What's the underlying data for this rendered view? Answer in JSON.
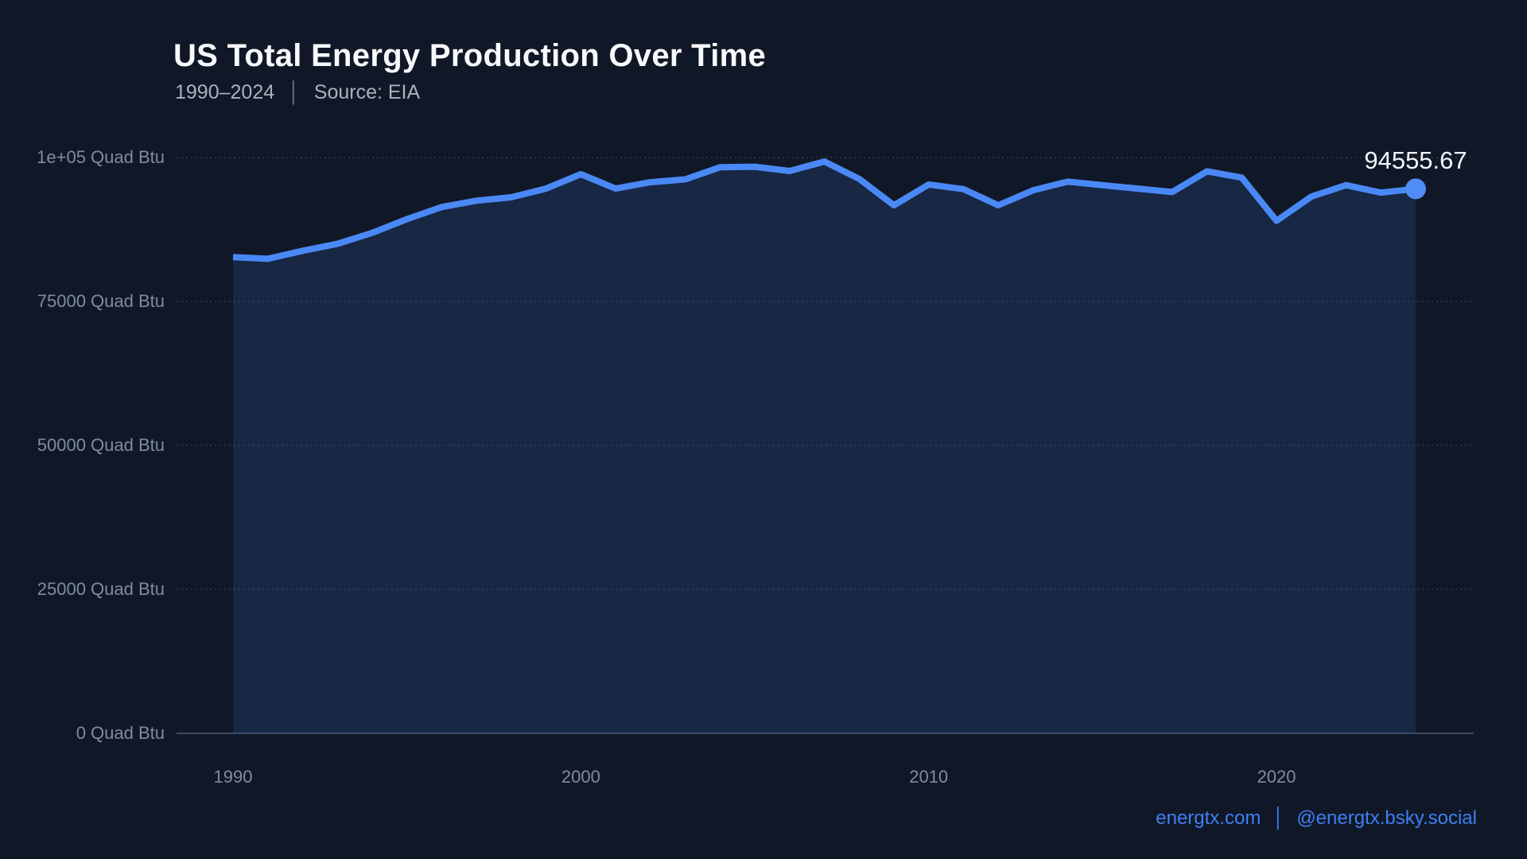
{
  "page": {
    "background_color": "#101827"
  },
  "header": {
    "title": "US Total Energy Production Over Time",
    "subtitle_range": "1990–2024",
    "subtitle_separator": "│",
    "subtitle_source": "Source: EIA"
  },
  "annotation": {
    "last_value_label": "94555.67"
  },
  "footer": {
    "website": "energtx.com",
    "separator": "│",
    "handle": "@energtx.bsky.social"
  },
  "colors": {
    "line": "#4a88f5",
    "marker": "#4f8cf6",
    "area_fill": "rgba(74,136,245,0.14)",
    "gridline": "rgba(160,176,206,0.17)",
    "baseline": "rgba(160,176,206,0.32)",
    "accent_text": "#3f7ef2"
  },
  "chart_data": {
    "type": "area",
    "title": "US Total Energy Production Over Time",
    "subtitle": "1990–2024 | Source: EIA",
    "xlabel": "",
    "ylabel": "Quad Btu",
    "xlim": [
      1990,
      2024
    ],
    "ylim": [
      0,
      100000
    ],
    "grid": "horizontal-dashed",
    "legend_position": "none",
    "x": [
      1990,
      1991,
      1992,
      1993,
      1994,
      1995,
      1996,
      1997,
      1998,
      1999,
      2000,
      2001,
      2002,
      2003,
      2004,
      2005,
      2006,
      2007,
      2008,
      2009,
      2010,
      2011,
      2012,
      2013,
      2014,
      2015,
      2016,
      2017,
      2018,
      2019,
      2020,
      2021,
      2022,
      2023,
      2024
    ],
    "series": [
      {
        "name": "US Total Energy Production",
        "values": [
          82700,
          82400,
          83800,
          85000,
          86900,
          89300,
          91400,
          92500,
          93100,
          94600,
          97100,
          94600,
          95700,
          96200,
          98300,
          98400,
          97650,
          99300,
          96300,
          91700,
          95300,
          94500,
          91700,
          94300,
          95800,
          95200,
          94600,
          94000,
          97600,
          96500,
          89000,
          93200,
          95200,
          93900,
          94555.67
        ]
      }
    ],
    "end_point_label": "94555.67",
    "y_ticks": [
      {
        "value": 0,
        "label": "0 Quad Btu"
      },
      {
        "value": 25000,
        "label": "25000 Quad Btu"
      },
      {
        "value": 50000,
        "label": "50000 Quad Btu"
      },
      {
        "value": 75000,
        "label": "75000 Quad Btu"
      },
      {
        "value": 100000,
        "label": "1e+05 Quad Btu"
      }
    ],
    "x_ticks": [
      {
        "value": 1990,
        "label": "1990"
      },
      {
        "value": 2000,
        "label": "2000"
      },
      {
        "value": 2010,
        "label": "2010"
      },
      {
        "value": 2020,
        "label": "2020"
      }
    ]
  }
}
